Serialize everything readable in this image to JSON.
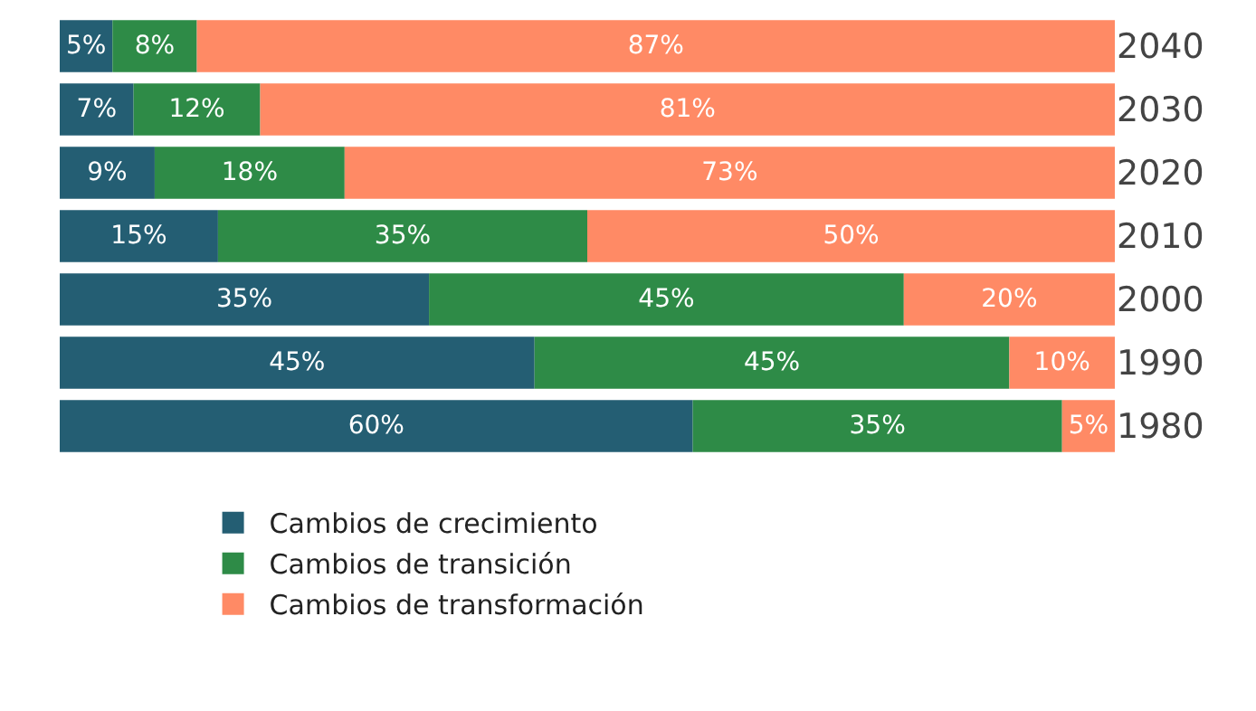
{
  "chart_data": {
    "type": "bar",
    "orientation": "horizontal",
    "stacked": true,
    "categories": [
      "2040",
      "2030",
      "2020",
      "2010",
      "2000",
      "1990",
      "1980"
    ],
    "series": [
      {
        "name": "Cambios de crecimiento",
        "color": "#245e73",
        "values": [
          5,
          7,
          9,
          15,
          35,
          45,
          60
        ],
        "value_labels": [
          "5%",
          "7%",
          "9%",
          "15%",
          "35%",
          "45%",
          "60%"
        ]
      },
      {
        "name": "Cambios de transición",
        "color": "#2e8b47",
        "values": [
          8,
          12,
          18,
          35,
          45,
          45,
          35
        ],
        "value_labels": [
          "8%",
          "12%",
          "18%",
          "35%",
          "45%",
          "45%",
          "35%"
        ]
      },
      {
        "name": "Cambios de transformación",
        "color": "#ff8a65",
        "values": [
          87,
          81,
          73,
          50,
          20,
          10,
          5
        ],
        "value_labels": [
          "87%",
          "81%",
          "73%",
          "50%",
          "20%",
          "10%",
          "5%"
        ]
      }
    ],
    "legend": "bottom left"
  }
}
